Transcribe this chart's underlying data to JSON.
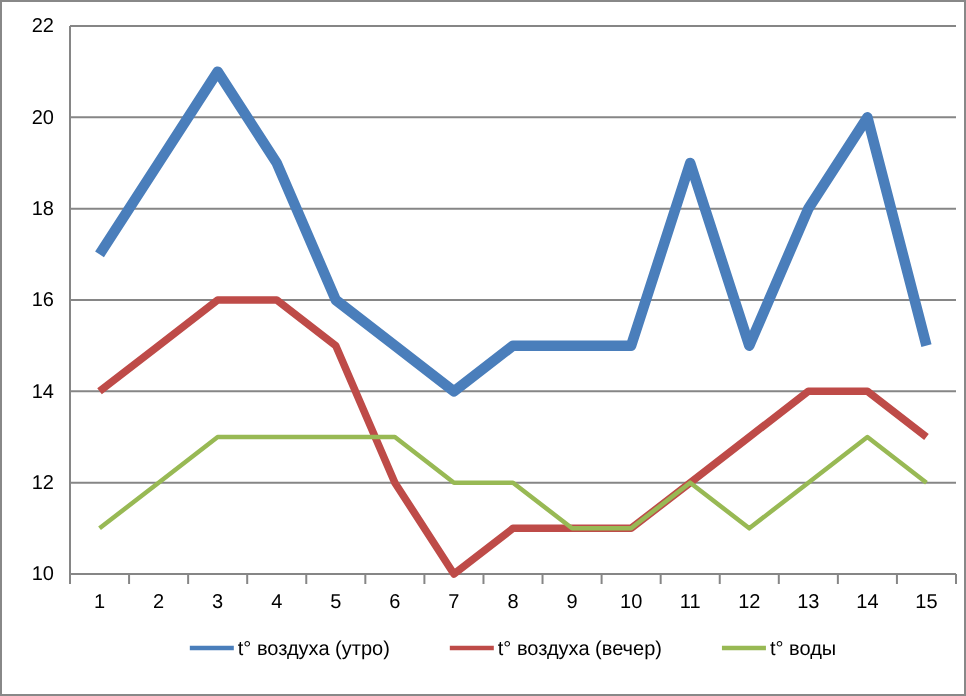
{
  "chart_data": {
    "type": "line",
    "categories": [
      "1",
      "2",
      "3",
      "4",
      "5",
      "6",
      "7",
      "8",
      "9",
      "10",
      "11",
      "12",
      "13",
      "14",
      "15"
    ],
    "series": [
      {
        "name": "t° воздуха (утро)",
        "color": "#4a7ebb",
        "values": [
          17,
          19,
          21,
          19,
          16,
          15,
          14,
          15,
          15,
          15,
          19,
          15,
          18,
          20,
          15
        ]
      },
      {
        "name": "t° воздуха (вечер)",
        "color": "#be4b48",
        "values": [
          14,
          15,
          16,
          16,
          15,
          12,
          10,
          11,
          11,
          11,
          12,
          13,
          14,
          14,
          13
        ]
      },
      {
        "name": "t° воды",
        "color": "#98b954",
        "values": [
          11,
          12,
          13,
          13,
          13,
          13,
          12,
          12,
          11,
          11,
          12,
          11,
          12,
          13,
          12
        ]
      }
    ],
    "ylim": [
      10,
      22
    ],
    "yticks": [
      10,
      12,
      14,
      16,
      18,
      20,
      22
    ],
    "grid": "y",
    "legend": "bottom",
    "marker": "none",
    "line_style": "solid"
  }
}
